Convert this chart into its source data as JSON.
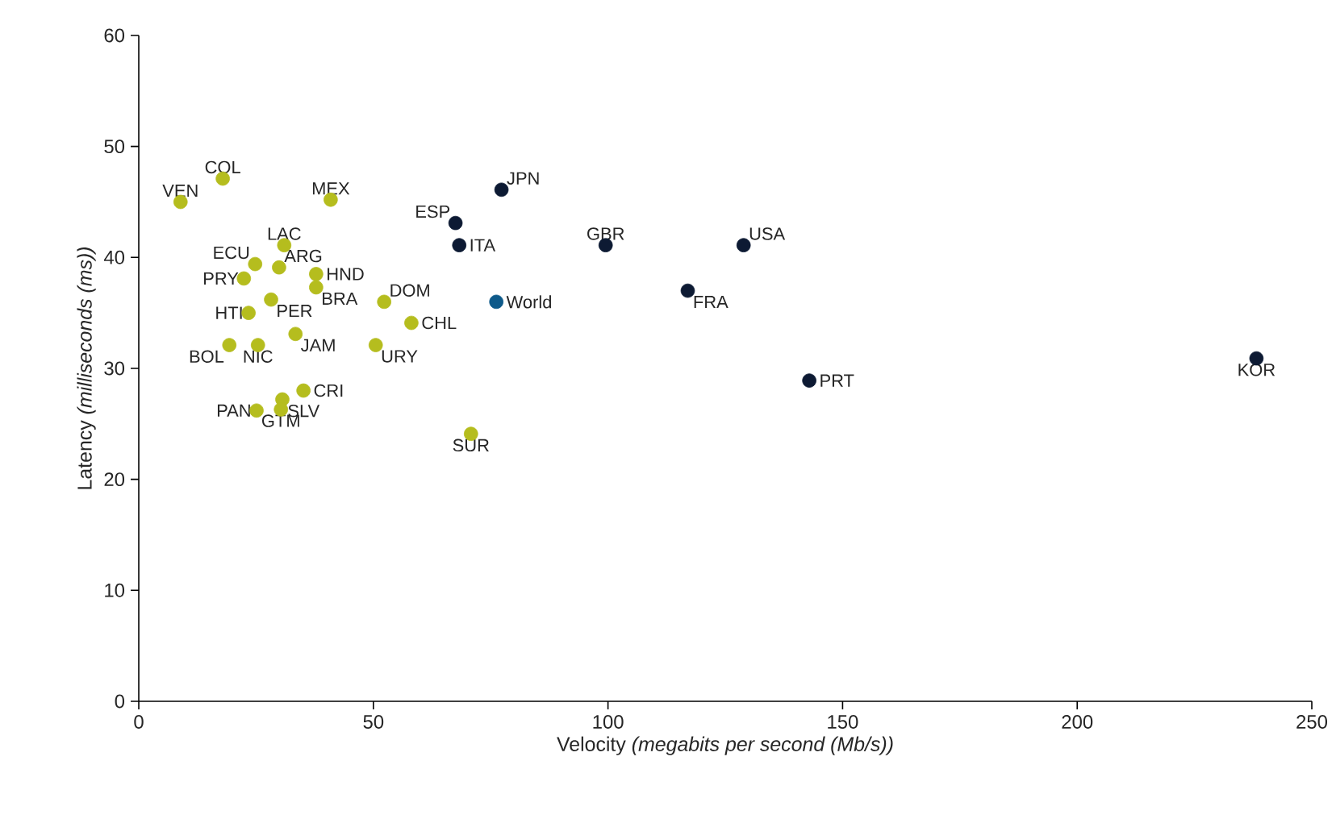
{
  "chart_data": {
    "type": "scatter",
    "xlabel": "Velocity *(megabits per second (Mb/s))*",
    "ylabel": "Latency *(milliseconds (ms))*",
    "xlim": [
      0,
      250
    ],
    "ylim": [
      0,
      60
    ],
    "xticks": [
      0,
      50,
      100,
      150,
      200,
      250
    ],
    "yticks": [
      0,
      10,
      20,
      30,
      40,
      50,
      60
    ],
    "marker": "circle",
    "grid": false,
    "series": [
      {
        "color": "#b5bd1e",
        "x": [
          8.9,
          17.9,
          40.9,
          31.0,
          24.8,
          29.9,
          22.4,
          37.8,
          37.8,
          28.2,
          52.3,
          23.4,
          58.1,
          33.4,
          19.3,
          25.4,
          50.5,
          35.1,
          30.6,
          25.1,
          30.3,
          70.8
        ],
        "values": [
          45.0,
          47.1,
          45.2,
          41.1,
          39.4,
          39.1,
          38.1,
          38.5,
          37.3,
          36.2,
          36.0,
          35.0,
          34.1,
          33.1,
          32.1,
          32.1,
          32.1,
          28.0,
          27.2,
          26.2,
          26.3,
          24.1
        ]
      },
      {
        "color": "#0d1a33",
        "x": [
          77.3,
          67.5,
          68.3,
          99.5,
          128.9,
          117.0,
          142.9,
          238.2
        ],
        "values": [
          46.1,
          43.1,
          41.1,
          41.1,
          41.1,
          37.0,
          28.9,
          30.9
        ]
      },
      {
        "color": "#0e5a8a",
        "x": [
          76.2
        ],
        "values": [
          36.0
        ]
      }
    ],
    "annotations": [
      {
        "text": "VEN",
        "x": 8.9,
        "y": 45.0
      },
      {
        "text": "COL",
        "x": 17.9,
        "y": 47.1
      },
      {
        "text": "MEX",
        "x": 40.9,
        "y": 45.2
      },
      {
        "text": "LAC",
        "x": 31.0,
        "y": 41.1
      },
      {
        "text": "ECU",
        "x": 24.8,
        "y": 39.4
      },
      {
        "text": "ARG",
        "x": 29.9,
        "y": 39.1
      },
      {
        "text": "PRY",
        "x": 22.4,
        "y": 38.1
      },
      {
        "text": "HND",
        "x": 37.8,
        "y": 38.5
      },
      {
        "text": "BRA",
        "x": 37.8,
        "y": 37.3
      },
      {
        "text": "PER",
        "x": 28.2,
        "y": 36.2
      },
      {
        "text": "DOM",
        "x": 52.3,
        "y": 36.0
      },
      {
        "text": "HTI",
        "x": 23.4,
        "y": 35.0
      },
      {
        "text": "CHL",
        "x": 58.1,
        "y": 34.1
      },
      {
        "text": "JAM",
        "x": 33.4,
        "y": 33.1
      },
      {
        "text": "BOL",
        "x": 19.3,
        "y": 32.1
      },
      {
        "text": "NIC",
        "x": 25.4,
        "y": 32.1
      },
      {
        "text": "URY",
        "x": 50.5,
        "y": 32.1
      },
      {
        "text": "CRI",
        "x": 35.1,
        "y": 28.0
      },
      {
        "text": "SLV",
        "x": 30.6,
        "y": 27.2
      },
      {
        "text": "PAN",
        "x": 25.1,
        "y": 26.2
      },
      {
        "text": "GTM",
        "x": 30.3,
        "y": 26.3
      },
      {
        "text": "SUR",
        "x": 70.8,
        "y": 24.1
      },
      {
        "text": "JPN",
        "x": 77.3,
        "y": 46.1
      },
      {
        "text": "ESP",
        "x": 67.5,
        "y": 43.1
      },
      {
        "text": "ITA",
        "x": 68.3,
        "y": 41.1
      },
      {
        "text": "GBR",
        "x": 99.5,
        "y": 41.1
      },
      {
        "text": "USA",
        "x": 128.9,
        "y": 41.1
      },
      {
        "text": "FRA",
        "x": 117.0,
        "y": 37.0
      },
      {
        "text": "PRT",
        "x": 142.9,
        "y": 28.9
      },
      {
        "text": "KOR",
        "x": 238.2,
        "y": 30.9
      },
      {
        "text": "World",
        "x": 76.2,
        "y": 36.0
      }
    ]
  }
}
